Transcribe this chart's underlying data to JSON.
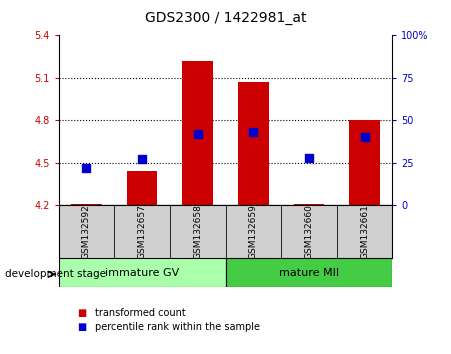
{
  "title": "GDS2300 / 1422981_at",
  "samples": [
    "GSM132592",
    "GSM132657",
    "GSM132658",
    "GSM132659",
    "GSM132660",
    "GSM132661"
  ],
  "transformed_counts": [
    4.21,
    4.44,
    5.22,
    5.07,
    4.21,
    4.8
  ],
  "percentile_ranks": [
    22,
    27,
    42,
    43,
    28,
    40
  ],
  "ylim_left": [
    4.2,
    5.4
  ],
  "ylim_right": [
    0,
    100
  ],
  "yticks_left": [
    4.2,
    4.5,
    4.8,
    5.1,
    5.4
  ],
  "yticks_right": [
    0,
    25,
    50,
    75,
    100
  ],
  "yticklabels_right": [
    "0",
    "25",
    "50",
    "75",
    "100%"
  ],
  "base_value": 4.2,
  "groups": [
    {
      "label": "immature GV",
      "start": 0,
      "end": 2,
      "color": "#aaffaa"
    },
    {
      "label": "mature MII",
      "start": 3,
      "end": 5,
      "color": "#44cc44"
    }
  ],
  "group_label": "development stage",
  "bar_color": "#cc0000",
  "dot_color": "#0000cc",
  "bar_width": 0.55,
  "dot_size": 35,
  "left_tick_color": "#cc0000",
  "right_tick_color": "#0000cc",
  "dotted_lines": [
    4.5,
    4.8,
    5.1
  ],
  "legend_bar_color": "#cc0000",
  "legend_dot_color": "#0000cc",
  "legend_bar_label": "transformed count",
  "legend_dot_label": "percentile rank within the sample"
}
